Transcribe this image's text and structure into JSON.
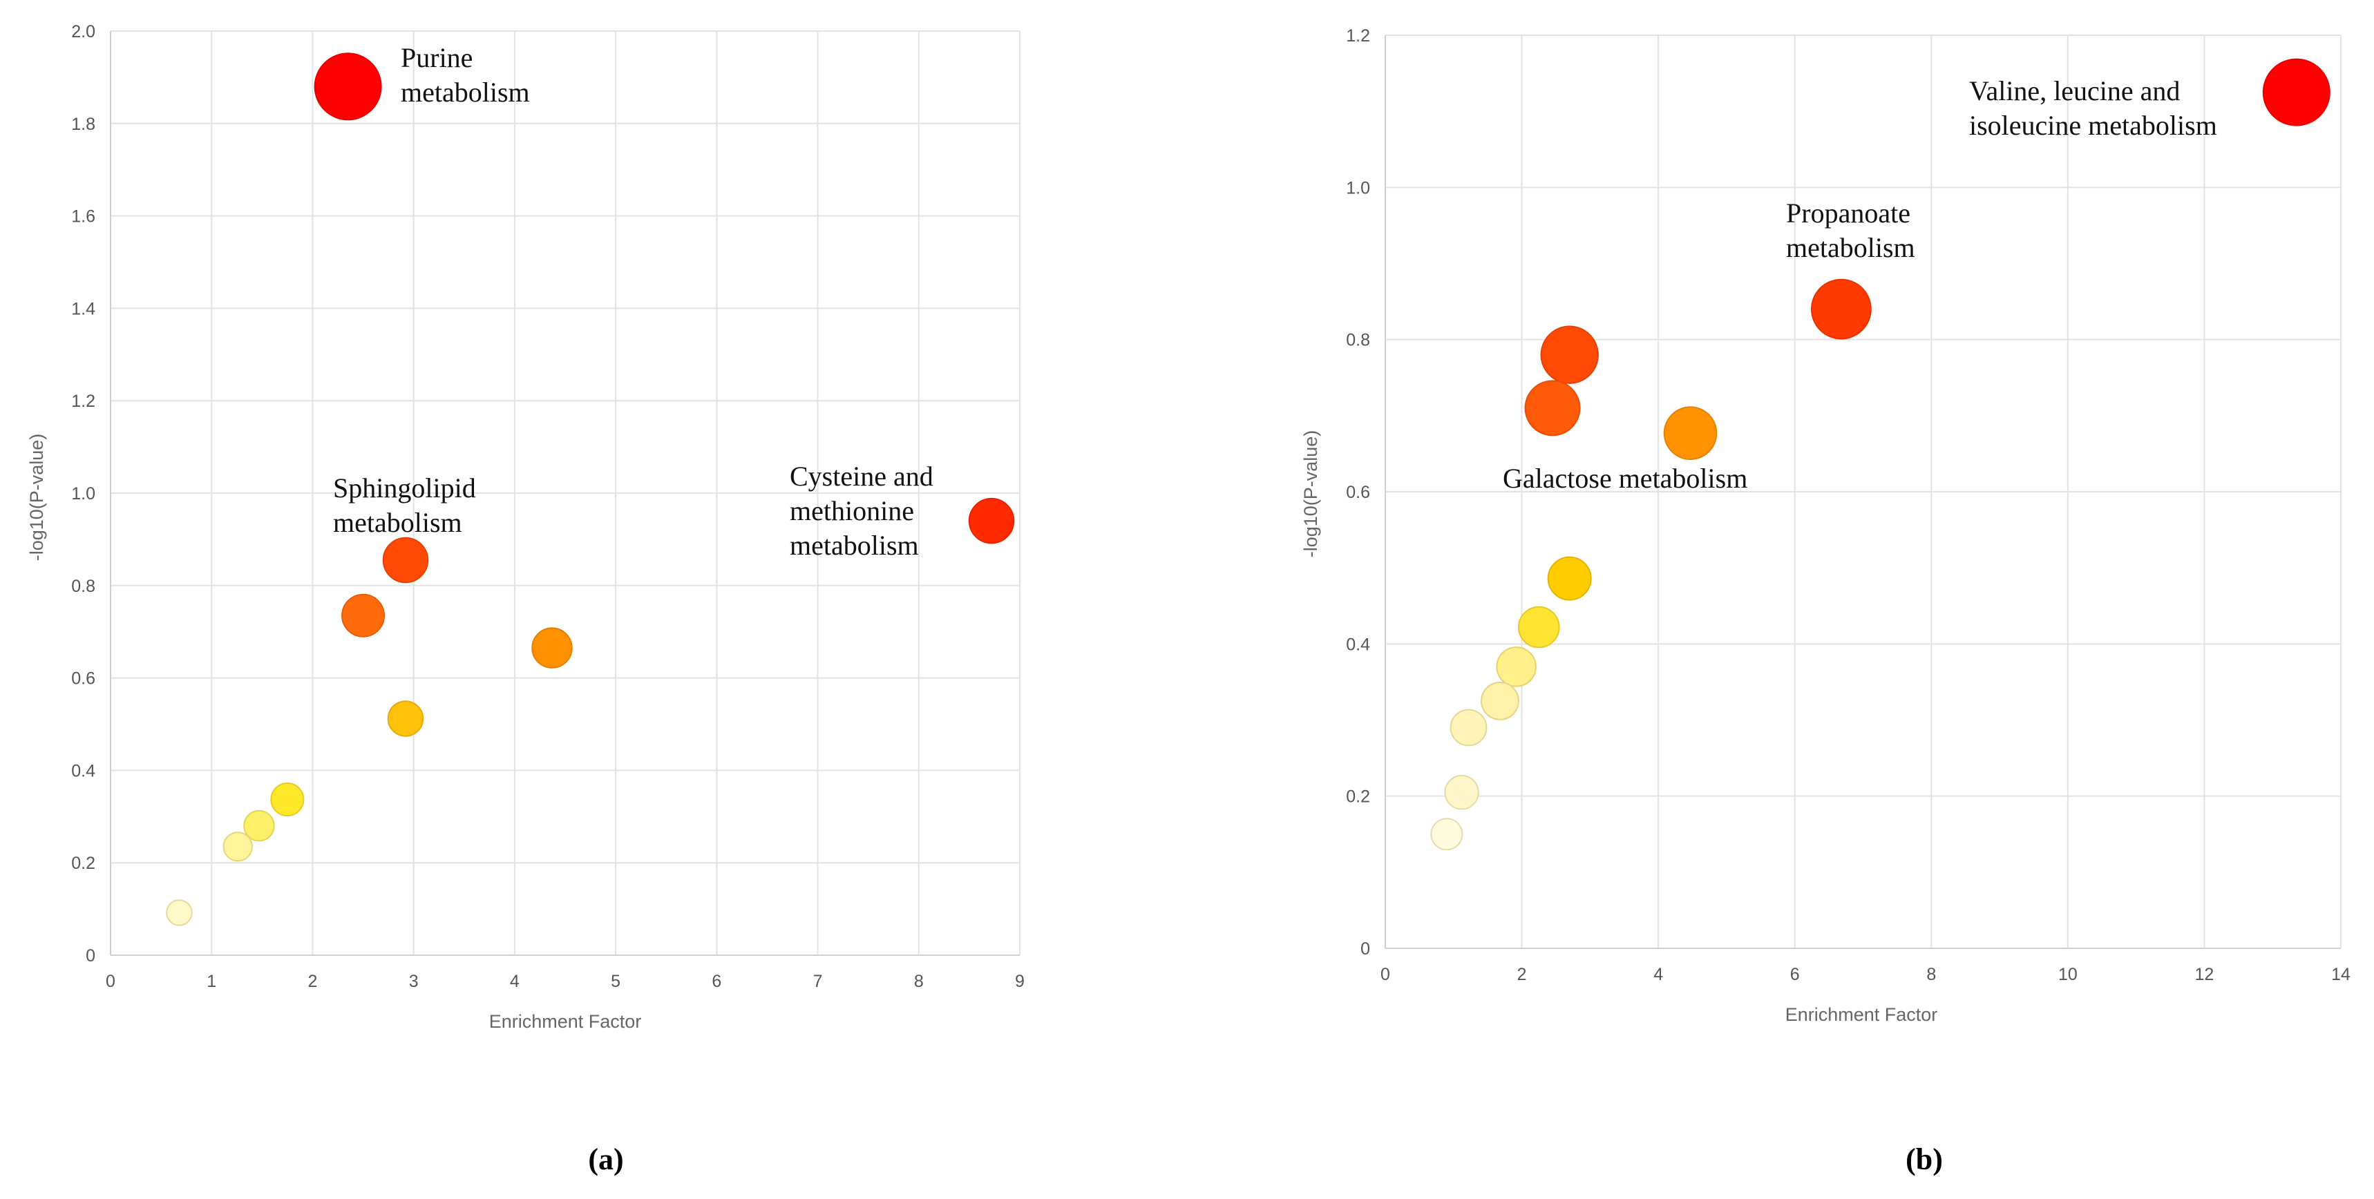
{
  "chart_data": [
    {
      "type": "scatter",
      "panel": "(a)",
      "xlabel": "Enrichment Factor",
      "ylabel": "-log10(P-value)",
      "xlim": [
        0,
        9
      ],
      "ylim": [
        0,
        2.0
      ],
      "xticks": [
        0,
        1,
        2,
        3,
        4,
        5,
        6,
        7,
        8,
        9
      ],
      "yticks": [
        "0",
        "0.2",
        "0.4",
        "0.6",
        "0.8",
        "1.0",
        "1.2",
        "1.4",
        "1.6",
        "1.8",
        "2.0"
      ],
      "grid": true,
      "points": [
        {
          "x": 2.35,
          "y": 1.88,
          "color": "#ff0000",
          "magnitude": 1.0
        },
        {
          "x": 8.72,
          "y": 0.94,
          "color": "#ff2a00",
          "magnitude": 0.55
        },
        {
          "x": 2.92,
          "y": 0.855,
          "color": "#ff4a06",
          "magnitude": 0.55
        },
        {
          "x": 2.5,
          "y": 0.735,
          "color": "#ff6a0a",
          "magnitude": 0.5
        },
        {
          "x": 4.37,
          "y": 0.665,
          "color": "#ff9000",
          "magnitude": 0.45
        },
        {
          "x": 2.92,
          "y": 0.512,
          "color": "#ffc20a",
          "magnitude": 0.35
        },
        {
          "x": 1.75,
          "y": 0.337,
          "color": "#ffe829",
          "magnitude": 0.3
        },
        {
          "x": 1.47,
          "y": 0.28,
          "color": "#fff06a",
          "magnitude": 0.25
        },
        {
          "x": 1.26,
          "y": 0.235,
          "color": "#fff49a",
          "magnitude": 0.22
        },
        {
          "x": 0.68,
          "y": 0.092,
          "color": "#fff8c8",
          "magnitude": 0.15
        }
      ],
      "annotations": [
        {
          "lines": [
            "Purine",
            "metabolism"
          ]
        },
        {
          "lines": [
            "Sphingolipid",
            "metabolism"
          ]
        },
        {
          "lines": [
            "Cysteine and",
            "methionine",
            "metabolism"
          ]
        }
      ]
    },
    {
      "type": "scatter",
      "panel": "(b)",
      "xlabel": "Enrichment Factor",
      "ylabel": "-log10(P-value)",
      "xlim": [
        0,
        14
      ],
      "ylim": [
        0,
        1.2
      ],
      "xticks": [
        0,
        2,
        4,
        6,
        8,
        10,
        12,
        14
      ],
      "yticks": [
        "0",
        "0.2",
        "0.4",
        "0.6",
        "0.8",
        "1.0",
        "1.2"
      ],
      "grid": true,
      "points": [
        {
          "x": 13.35,
          "y": 1.125,
          "color": "#ff0000",
          "magnitude": 1.0
        },
        {
          "x": 6.68,
          "y": 0.84,
          "color": "#ff3a00",
          "magnitude": 0.85
        },
        {
          "x": 2.7,
          "y": 0.78,
          "color": "#ff4a06",
          "magnitude": 0.8
        },
        {
          "x": 2.45,
          "y": 0.71,
          "color": "#ff5a08",
          "magnitude": 0.75
        },
        {
          "x": 4.47,
          "y": 0.677,
          "color": "#ff9200",
          "magnitude": 0.7
        },
        {
          "x": 2.7,
          "y": 0.486,
          "color": "#ffcc00",
          "magnitude": 0.5
        },
        {
          "x": 2.25,
          "y": 0.422,
          "color": "#ffe433",
          "magnitude": 0.45
        },
        {
          "x": 1.92,
          "y": 0.37,
          "color": "#fff08a",
          "magnitude": 0.42
        },
        {
          "x": 1.68,
          "y": 0.325,
          "color": "#fff1a8",
          "magnitude": 0.38
        },
        {
          "x": 1.22,
          "y": 0.29,
          "color": "#fff4b8",
          "magnitude": 0.35
        },
        {
          "x": 1.12,
          "y": 0.205,
          "color": "#fff7ca",
          "magnitude": 0.3
        },
        {
          "x": 0.9,
          "y": 0.15,
          "color": "#fffadd",
          "magnitude": 0.25
        }
      ],
      "annotations": [
        {
          "lines": [
            "Valine, leucine and",
            "isoleucine metabolism"
          ]
        },
        {
          "lines": [
            "Propanoate",
            "metabolism"
          ]
        },
        {
          "lines": [
            "Galactose metabolism"
          ]
        }
      ]
    }
  ]
}
